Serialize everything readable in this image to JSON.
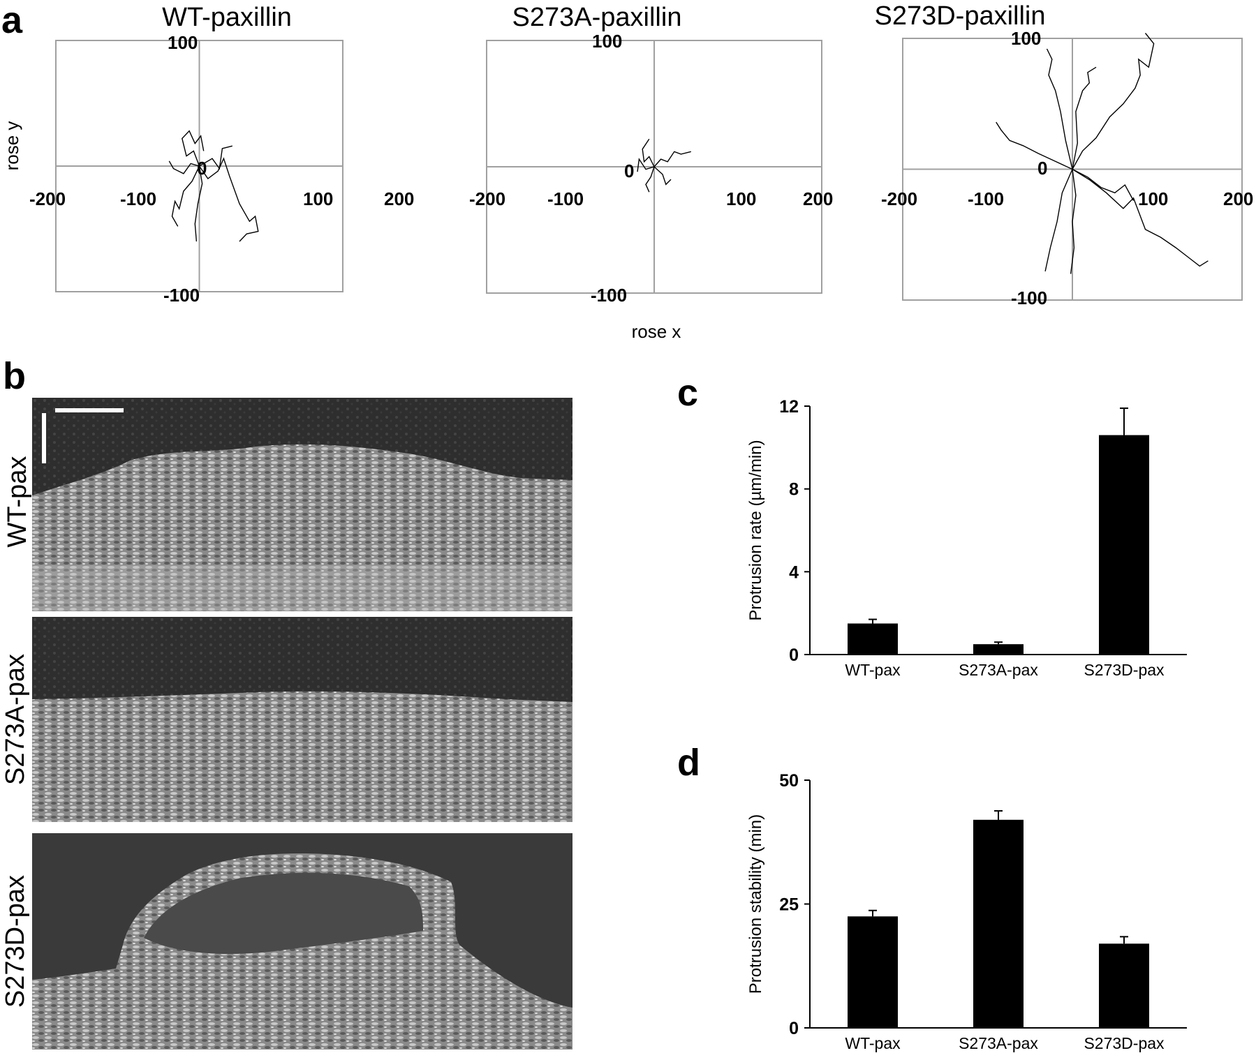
{
  "panel_a": {
    "letter": "a",
    "shared_xlabel": "rose x",
    "shared_ylabel": "rose y",
    "plots": [
      {
        "title": "WT-paxillin"
      },
      {
        "title": "S273A-paxillin"
      },
      {
        "title": "S273D-paxillin"
      }
    ]
  },
  "panel_b": {
    "letter": "b",
    "rows": [
      {
        "label": "WT-pax"
      },
      {
        "label": "S273A-pax"
      },
      {
        "label": "S273D-pax"
      }
    ]
  },
  "panel_c": {
    "letter": "c"
  },
  "panel_d": {
    "letter": "d"
  },
  "chart_data": [
    {
      "id": "rose-wt",
      "type": "line",
      "title": "WT-paxillin",
      "xlabel": "rose x",
      "ylabel": "rose y",
      "xlim": [
        -200,
        200
      ],
      "ylim": [
        -100,
        100
      ],
      "xticks": [
        -200,
        -100,
        0,
        100,
        200
      ],
      "yticks": [
        -100,
        0,
        100
      ],
      "x_tick_labels": [
        "-200",
        "-100",
        "100",
        "200"
      ],
      "y_tick_labels": [
        "100",
        "0",
        "-100"
      ],
      "tracks": [
        [
          [
            0,
            0
          ],
          [
            -8,
            12
          ],
          [
            -18,
            8
          ],
          [
            -24,
            22
          ],
          [
            -14,
            28
          ],
          [
            -6,
            18
          ],
          [
            2,
            24
          ],
          [
            6,
            12
          ]
        ],
        [
          [
            0,
            0
          ],
          [
            12,
            -10
          ],
          [
            26,
            -4
          ],
          [
            34,
            6
          ],
          [
            42,
            -8
          ],
          [
            56,
            -30
          ],
          [
            70,
            -44
          ],
          [
            78,
            -40
          ],
          [
            82,
            -52
          ],
          [
            66,
            -54
          ],
          [
            56,
            -60
          ]
        ],
        [
          [
            0,
            0
          ],
          [
            -10,
            -12
          ],
          [
            -22,
            -20
          ],
          [
            -28,
            -34
          ],
          [
            -34,
            -28
          ],
          [
            -38,
            -40
          ],
          [
            -30,
            -48
          ]
        ],
        [
          [
            0,
            0
          ],
          [
            4,
            -14
          ],
          [
            -2,
            -30
          ],
          [
            -6,
            -46
          ],
          [
            -4,
            -60
          ]
        ],
        [
          [
            0,
            0
          ],
          [
            18,
            6
          ],
          [
            28,
            -2
          ],
          [
            32,
            14
          ],
          [
            46,
            16
          ]
        ],
        [
          [
            0,
            0
          ],
          [
            -12,
            2
          ],
          [
            -22,
            -6
          ],
          [
            -36,
            -2
          ],
          [
            -42,
            4
          ]
        ]
      ]
    },
    {
      "id": "rose-s273a",
      "type": "line",
      "title": "S273A-paxillin",
      "xlabel": "rose x",
      "ylabel": "rose y",
      "xlim": [
        -200,
        200
      ],
      "ylim": [
        -100,
        100
      ],
      "xticks": [
        -200,
        -100,
        0,
        100,
        200
      ],
      "yticks": [
        -100,
        0,
        100
      ],
      "x_tick_labels": [
        "-200",
        "-100",
        "100",
        "200"
      ],
      "y_tick_labels": [
        "100",
        "0",
        "-100"
      ],
      "tracks": [
        [
          [
            0,
            0
          ],
          [
            -6,
            8
          ],
          [
            -12,
            4
          ],
          [
            -14,
            14
          ],
          [
            -6,
            22
          ]
        ],
        [
          [
            0,
            0
          ],
          [
            8,
            6
          ],
          [
            16,
            4
          ],
          [
            24,
            12
          ],
          [
            32,
            10
          ],
          [
            44,
            12
          ]
        ],
        [
          [
            0,
            0
          ],
          [
            -4,
            -8
          ],
          [
            -10,
            -14
          ],
          [
            -6,
            -20
          ]
        ],
        [
          [
            0,
            0
          ],
          [
            10,
            -6
          ],
          [
            14,
            -14
          ],
          [
            20,
            -10
          ]
        ],
        [
          [
            0,
            0
          ],
          [
            -10,
            -2
          ],
          [
            -18,
            6
          ],
          [
            -20,
            -4
          ]
        ]
      ]
    },
    {
      "id": "rose-s273d",
      "type": "line",
      "title": "S273D-paxillin",
      "xlabel": "rose x",
      "ylabel": "rose y",
      "xlim": [
        -200,
        200
      ],
      "ylim": [
        -100,
        100
      ],
      "xticks": [
        -200,
        -100,
        0,
        100,
        200
      ],
      "yticks": [
        -100,
        0,
        100
      ],
      "x_tick_labels": [
        "-200",
        "-100",
        "100",
        "200"
      ],
      "y_tick_labels": [
        "100",
        "0",
        "-100"
      ],
      "tracks": [
        [
          [
            0,
            0
          ],
          [
            -8,
            22
          ],
          [
            -14,
            44
          ],
          [
            -20,
            60
          ],
          [
            -28,
            72
          ],
          [
            -24,
            84
          ],
          [
            -30,
            92
          ]
        ],
        [
          [
            0,
            0
          ],
          [
            6,
            20
          ],
          [
            4,
            44
          ],
          [
            12,
            60
          ],
          [
            20,
            66
          ],
          [
            18,
            74
          ],
          [
            28,
            78
          ]
        ],
        [
          [
            0,
            0
          ],
          [
            12,
            14
          ],
          [
            28,
            24
          ],
          [
            44,
            40
          ],
          [
            60,
            50
          ],
          [
            74,
            62
          ],
          [
            80,
            72
          ],
          [
            78,
            84
          ],
          [
            90,
            78
          ],
          [
            96,
            96
          ],
          [
            86,
            104
          ]
        ],
        [
          [
            0,
            0
          ],
          [
            -20,
            6
          ],
          [
            -40,
            12
          ],
          [
            -58,
            18
          ],
          [
            -74,
            22
          ],
          [
            -84,
            30
          ],
          [
            -90,
            36
          ]
        ],
        [
          [
            0,
            0
          ],
          [
            20,
            -8
          ],
          [
            40,
            -18
          ],
          [
            60,
            -30
          ],
          [
            72,
            -22
          ],
          [
            86,
            -46
          ],
          [
            104,
            -52
          ],
          [
            122,
            -60
          ],
          [
            138,
            -68
          ],
          [
            150,
            -74
          ],
          [
            160,
            -70
          ]
        ],
        [
          [
            0,
            0
          ],
          [
            4,
            -20
          ],
          [
            0,
            -40
          ],
          [
            2,
            -60
          ],
          [
            -2,
            -80
          ]
        ],
        [
          [
            0,
            0
          ],
          [
            -12,
            -18
          ],
          [
            -18,
            -40
          ],
          [
            -26,
            -60
          ],
          [
            -32,
            -78
          ]
        ],
        [
          [
            0,
            0
          ],
          [
            18,
            -6
          ],
          [
            34,
            -14
          ],
          [
            50,
            -18
          ],
          [
            62,
            -12
          ],
          [
            72,
            -24
          ]
        ]
      ]
    },
    {
      "id": "protrusion-rate",
      "type": "bar",
      "categories": [
        "WT-pax",
        "S273A-pax",
        "S273D-pax"
      ],
      "values": [
        1.5,
        0.5,
        10.6
      ],
      "errors": [
        0.2,
        0.1,
        1.3
      ],
      "ylabel": "Protrusion rate (µm/min)",
      "ylim": [
        0,
        12
      ],
      "yticks": [
        0,
        4,
        8,
        12
      ]
    },
    {
      "id": "protrusion-stability",
      "type": "bar",
      "categories": [
        "WT-pax",
        "S273A-pax",
        "S273D-pax"
      ],
      "values": [
        22.5,
        42,
        17
      ],
      "errors": [
        1.2,
        1.8,
        1.4
      ],
      "ylabel": "Protrusion stability (min)",
      "ylim": [
        0,
        50
      ],
      "yticks": [
        0,
        25,
        50
      ]
    }
  ]
}
